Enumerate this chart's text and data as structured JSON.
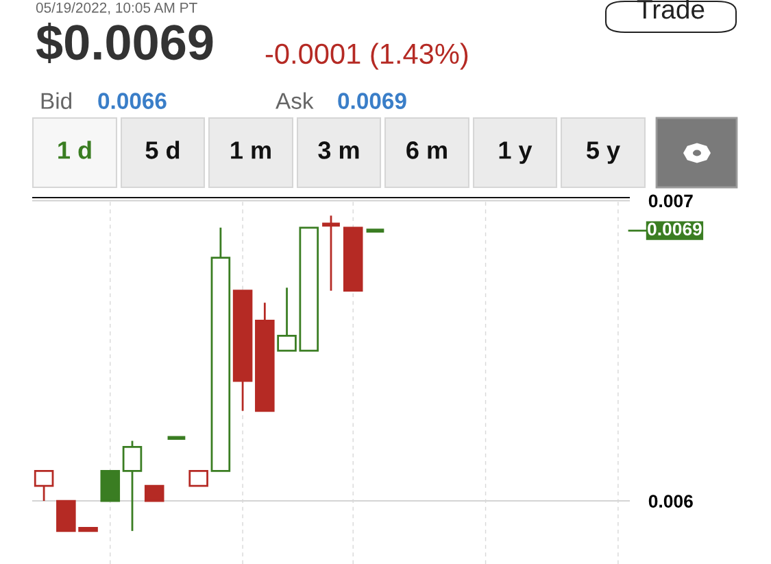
{
  "chart_data": {
    "type": "candlestick",
    "title": "$0.0069",
    "subtitle": "-0.0001 (1.43%)",
    "annotations": [
      "05/19/2022, 10:05 AM PT",
      "Bid",
      "0.0066",
      "Ask",
      "0.0069",
      "1 d",
      "5 d",
      "1 m",
      "3 m",
      "6 m",
      "1 y",
      "5 y",
      "Trade"
    ],
    "categories": [
      null,
      null,
      null,
      null,
      null,
      null,
      null,
      null,
      null,
      null,
      null,
      null,
      null,
      null,
      null,
      null,
      null,
      null,
      null,
      null,
      null,
      null,
      null,
      null,
      null,
      null,
      null
    ],
    "ohlc": [
      [
        0.00605,
        0.0061,
        0.006,
        0.0061
      ],
      [
        0.006,
        0.006,
        0.0059,
        0.0059
      ],
      [
        0.00591,
        0.00591,
        0.0059,
        0.0059
      ],
      [
        0.0061,
        0.0061,
        0.006,
        0.006
      ],
      [
        0.0061,
        0.0062,
        0.0059,
        0.00618
      ],
      [
        0.00605,
        0.00605,
        0.006,
        0.006
      ],
      [
        0.00621,
        0.00621,
        0.00621,
        0.00621
      ],
      [
        0.00605,
        0.0061,
        0.00605,
        0.0061
      ],
      [
        0.0061,
        0.00691,
        0.0061,
        0.00681
      ],
      [
        0.0067,
        0.0067,
        0.0063,
        0.0064
      ],
      [
        0.0066,
        0.00666,
        0.0063,
        0.0063
      ],
      [
        0.0065,
        0.00671,
        0.0065,
        0.00655
      ],
      [
        0.0065,
        0.00691,
        0.0065,
        0.00691
      ],
      [
        0.00692,
        0.00695,
        0.0067,
        0.00692
      ],
      [
        0.00691,
        0.00691,
        0.0067,
        0.0067
      ],
      [
        0.0069,
        0.0069,
        0.0069,
        0.0069
      ],
      null,
      null,
      null,
      null,
      null,
      null,
      null,
      null,
      null,
      null,
      null
    ],
    "colors": [
      "#b52a24",
      "#b52a24",
      "#b52a24",
      "#3a7d22",
      "#3a7d22",
      "#b52a24",
      "#3a7d22",
      "#b52a24",
      "#3a7d22",
      "#b52a24",
      "#b52a24",
      "#3a7d22",
      "#3a7d22",
      "#b52a24",
      "#b52a24",
      "#3a7d22",
      null,
      null,
      null,
      null,
      null,
      null,
      null,
      null,
      null,
      null,
      null
    ],
    "ylim": [
      0.00579,
      0.00701
    ],
    "yticks": [
      0.006,
      0.007
    ],
    "grid": true,
    "ref_lines": [
      {
        "axis": "y",
        "value": 0.0069,
        "label": "0.0069",
        "color": "#3a7d22"
      }
    ]
  }
}
